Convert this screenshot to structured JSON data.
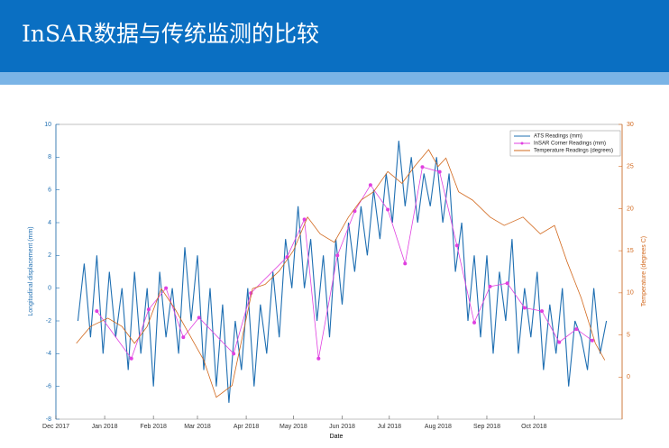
{
  "slide_title": "InSAR数据与传统监测的比较",
  "chart_data": {
    "type": "line",
    "xlabel": "Date",
    "ylabel": "Longitudinal displacement (mm)",
    "y2label": "Temperature (degrees C)",
    "xlim": [
      0,
      360
    ],
    "ylim": [
      -8,
      10
    ],
    "y2lim": [
      -5,
      30
    ],
    "xticks": [
      {
        "value": 0,
        "label": "Dec 2017"
      },
      {
        "value": 31,
        "label": "Jan 2018"
      },
      {
        "value": 62,
        "label": "Feb 2018"
      },
      {
        "value": 90,
        "label": "Mar 2018"
      },
      {
        "value": 121,
        "label": "Apr 2018"
      },
      {
        "value": 151,
        "label": "May 2018"
      },
      {
        "value": 182,
        "label": "Jun 2018"
      },
      {
        "value": 212,
        "label": "Jul 2018"
      },
      {
        "value": 243,
        "label": "Aug 2018"
      },
      {
        "value": 274,
        "label": "Sep 2018"
      },
      {
        "value": 304,
        "label": "Oct 2018"
      }
    ],
    "yticks": [
      -8,
      -6,
      -4,
      -2,
      0,
      2,
      4,
      6,
      8,
      10
    ],
    "y2ticks": [
      0,
      5,
      10,
      15,
      20,
      25,
      30
    ],
    "legend": "upper right",
    "series": [
      {
        "name": "ATS Readings (mm)",
        "color": "#1f6fb2",
        "marker": false,
        "x": [
          14,
          18,
          22,
          26,
          30,
          34,
          38,
          42,
          46,
          50,
          54,
          58,
          62,
          66,
          70,
          74,
          78,
          82,
          86,
          90,
          94,
          98,
          102,
          106,
          110,
          114,
          118,
          122,
          126,
          130,
          134,
          138,
          142,
          146,
          150,
          154,
          158,
          162,
          166,
          170,
          174,
          178,
          182,
          186,
          190,
          194,
          198,
          202,
          206,
          210,
          214,
          218,
          222,
          226,
          230,
          234,
          238,
          242,
          246,
          250,
          254,
          258,
          262,
          266,
          270,
          274,
          278,
          282,
          286,
          290,
          294,
          298,
          302,
          306,
          310,
          314,
          318,
          322,
          326,
          330,
          334,
          338,
          342,
          346,
          350
        ],
        "values": [
          -2,
          1.5,
          -3,
          2,
          -4,
          1,
          -3,
          0,
          -5,
          1,
          -4,
          0,
          -6,
          1,
          -3,
          0,
          -4,
          2.5,
          -2,
          2,
          -5,
          0,
          -6,
          -1,
          -7,
          -2,
          -5,
          0,
          -6,
          -1,
          -4,
          1,
          -3,
          3,
          0,
          5,
          0,
          3,
          -2,
          2,
          -3,
          3,
          -1,
          4,
          1,
          5,
          2,
          6,
          3,
          7,
          4,
          9,
          5,
          8,
          4,
          7,
          5,
          8,
          4,
          7,
          1,
          4,
          -2,
          2,
          -3,
          2,
          -4,
          1,
          -2,
          3,
          -4,
          0,
          -3,
          1,
          -5,
          -1,
          -4,
          0,
          -6,
          -2,
          -3,
          -5,
          0,
          -4,
          -2
        ]
      },
      {
        "name": "InSAR Corner Readings (mm)",
        "color": "#e040e0",
        "marker": true,
        "x": [
          26,
          48,
          59,
          70,
          81,
          91,
          113,
          124,
          147,
          158,
          167,
          179,
          190,
          200,
          211,
          222,
          233,
          244,
          255,
          266,
          276,
          287,
          298,
          309,
          320,
          331,
          341
        ],
        "values": [
          -1.4,
          -4.3,
          -1.3,
          0,
          -3,
          -1.8,
          -4,
          -0.3,
          1.9,
          4.2,
          -4.3,
          2,
          4.7,
          6.3,
          4.8,
          1.5,
          7.4,
          7.1,
          2.6,
          -2.1,
          0.1,
          0.3,
          -1.2,
          -1.4,
          -3.3,
          -2.5,
          -3.2
        ]
      },
      {
        "name": "Temperature Readings (degrees)",
        "color": "#d2691e",
        "marker": false,
        "axis": "y2",
        "x": [
          13,
          22,
          33,
          42,
          50,
          58,
          67,
          76,
          85,
          94,
          102,
          112,
          125,
          133,
          142,
          151,
          160,
          168,
          177,
          186,
          194,
          202,
          211,
          220,
          228,
          237,
          243,
          248,
          256,
          265,
          276,
          285,
          297,
          308,
          317,
          325,
          334,
          343,
          349
        ],
        "values": [
          4,
          6,
          7,
          6,
          4,
          6,
          10.5,
          8,
          5,
          2,
          -2.4,
          -1,
          10.5,
          11,
          12.6,
          15,
          19,
          17,
          16,
          19,
          21,
          22,
          24.4,
          23,
          25,
          27,
          25,
          26,
          22,
          21,
          19,
          18,
          19,
          17,
          18,
          13.7,
          9.4,
          4,
          2
        ]
      }
    ]
  }
}
